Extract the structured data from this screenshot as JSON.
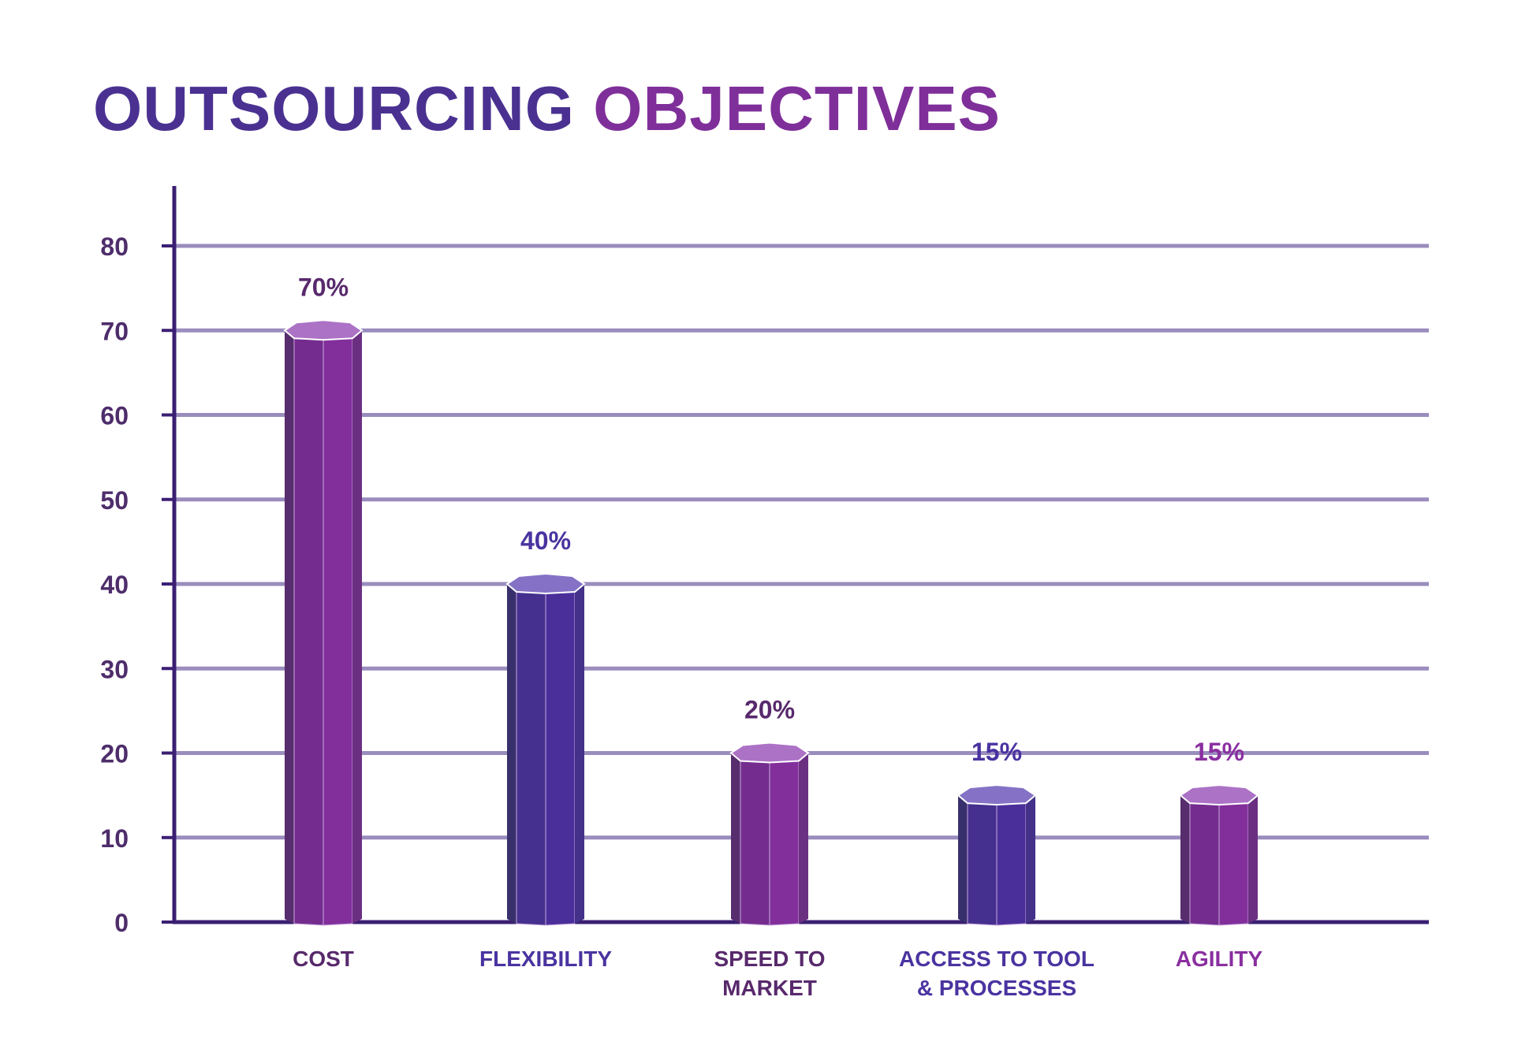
{
  "title": {
    "part1": "OUTSOURCING",
    "part2": "OBJECTIVES"
  },
  "chart_data": {
    "type": "bar",
    "title": "OUTSOURCING OBJECTIVES",
    "xlabel": "",
    "ylabel": "",
    "ylim": [
      0,
      80
    ],
    "yticks": [
      0,
      10,
      20,
      30,
      40,
      50,
      60,
      70,
      80
    ],
    "grid": true,
    "categories": [
      [
        "COST"
      ],
      [
        "FLEXIBILITY"
      ],
      [
        "SPEED TO",
        "MARKET"
      ],
      [
        "ACCESS TO TOOL",
        "& PROCESSES"
      ],
      [
        "AGILITY"
      ]
    ],
    "values": [
      70,
      40,
      20,
      15,
      15
    ],
    "data_labels": [
      "70%",
      "40%",
      "20%",
      "15%",
      "15%"
    ],
    "bar_styles": [
      "purple",
      "indigo",
      "purple",
      "indigo",
      "purple"
    ],
    "label_colors": [
      "#58296c",
      "#4a33a0",
      "#58296c",
      "#4a33a0",
      "#8a2fa0"
    ],
    "colors": {
      "purple": {
        "front": "#822f9c",
        "left": "#742d8f",
        "edge": "#572d6e",
        "right": "#6b2f82",
        "top": "#ac72c6"
      },
      "indigo": {
        "front": "#4a2f9b",
        "left": "#45308f",
        "edge": "#38306c",
        "right": "#43318a",
        "top": "#8572c6"
      },
      "grid": "#9a8cbd",
      "axis": "#3b1f73",
      "tick": "#4e2d6b"
    }
  }
}
